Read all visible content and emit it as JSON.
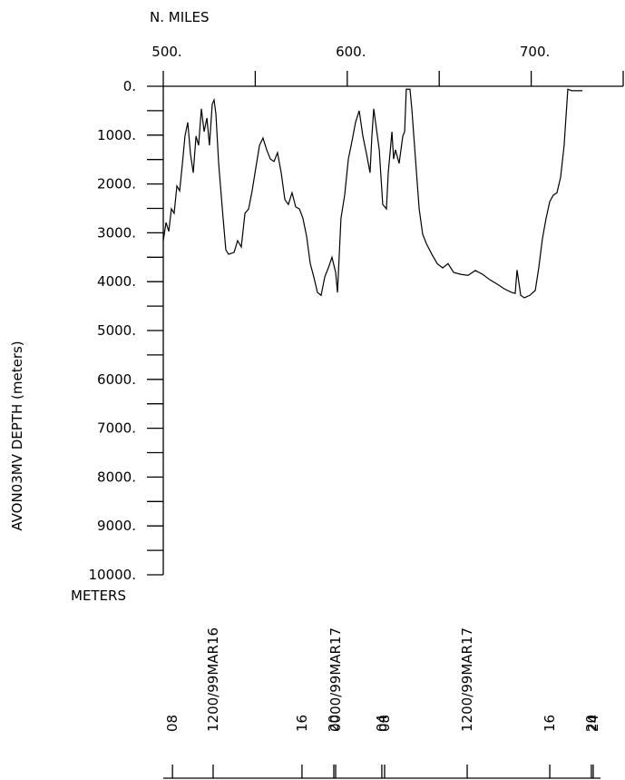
{
  "chart_data": {
    "type": "line",
    "ylabel": "AVON03MV DEPTH (meters)",
    "yunit": "METERS",
    "xlabel": "N. MILES",
    "xlim": [
      500,
      750
    ],
    "ylim": [
      0,
      10000
    ],
    "inverted_y": true,
    "xticks": [
      {
        "value": 500,
        "label": "500."
      },
      {
        "value": 600,
        "label": "600."
      },
      {
        "value": 700,
        "label": "700."
      }
    ],
    "xminor": [
      550,
      650,
      750
    ],
    "yticks": [
      {
        "value": 0,
        "label": "0."
      },
      {
        "value": 1000,
        "label": "1000."
      },
      {
        "value": 2000,
        "label": "2000."
      },
      {
        "value": 3000,
        "label": "3000."
      },
      {
        "value": 4000,
        "label": "4000."
      },
      {
        "value": 5000,
        "label": "5000."
      },
      {
        "value": 6000,
        "label": "6000."
      },
      {
        "value": 7000,
        "label": "7000."
      },
      {
        "value": 8000,
        "label": "8000."
      },
      {
        "value": 9000,
        "label": "9000."
      },
      {
        "value": 10000,
        "label": "10000."
      }
    ],
    "yminor": [
      500,
      1500,
      2500,
      3500,
      4500,
      5500,
      6500,
      7500,
      8500,
      9500
    ],
    "series": [
      {
        "color": "#000000",
        "x": [
          500.0,
          501.5,
          503.0,
          504.4,
          505.9,
          507.4,
          508.9,
          510.4,
          511.8,
          513.3,
          514.8,
          516.3,
          517.8,
          519.2,
          520.7,
          522.2,
          523.7,
          525.1,
          526.6,
          527.6,
          528.6,
          530.1,
          532.1,
          534.0,
          535.5,
          538.5,
          540.4,
          542.4,
          544.4,
          546.4,
          548.3,
          550.3,
          552.3,
          554.2,
          556.2,
          558.2,
          560.2,
          562.1,
          564.1,
          566.1,
          568.0,
          570.0,
          572.0,
          574.0,
          575.9,
          577.9,
          579.9,
          581.8,
          583.8,
          585.8,
          587.8,
          589.7,
          591.7,
          593.7,
          594.7,
          596.6,
          598.6,
          600.6,
          602.6,
          604.5,
          606.5,
          608.5,
          610.5,
          612.4,
          613.4,
          614.4,
          615.4,
          617.4,
          619.3,
          621.3,
          622.3,
          624.3,
          625.2,
          626.2,
          628.2,
          630.2,
          631.2,
          632.1,
          634.1,
          635.1,
          637.1,
          639.1,
          641.0,
          643.0,
          646.0,
          648.9,
          651.9,
          654.8,
          657.8,
          661.7,
          665.7,
          669.6,
          673.6,
          677.5,
          681.5,
          685.5,
          689.4,
          691.3,
          692.3,
          694.3,
          696.3,
          699.2,
          702.2,
          704.1,
          706.1,
          708.1,
          710.1,
          712.0,
          714.0,
          716.0,
          717.9,
          719.9,
          721.9,
          727.8
        ],
        "values": [
          3160,
          2790,
          2970,
          2510,
          2600,
          2040,
          2140,
          1580,
          1020,
          740,
          1390,
          1770,
          1020,
          1210,
          460,
          930,
          650,
          1210,
          370,
          280,
          560,
          1580,
          2510,
          3350,
          3440,
          3400,
          3160,
          3290,
          2600,
          2510,
          2140,
          1670,
          1210,
          1060,
          1300,
          1490,
          1540,
          1360,
          1770,
          2320,
          2420,
          2180,
          2470,
          2510,
          2700,
          3070,
          3630,
          3900,
          4220,
          4280,
          3900,
          3720,
          3500,
          3810,
          4220,
          2700,
          2230,
          1490,
          1120,
          740,
          500,
          1020,
          1390,
          1770,
          1020,
          460,
          740,
          1300,
          2420,
          2510,
          1770,
          930,
          1490,
          1300,
          1580,
          1020,
          930,
          60,
          60,
          460,
          1490,
          2510,
          3030,
          3220,
          3440,
          3630,
          3720,
          3630,
          3810,
          3850,
          3870,
          3770,
          3850,
          3960,
          4050,
          4150,
          4220,
          4240,
          3760,
          4280,
          4330,
          4280,
          4180,
          3720,
          3120,
          2700,
          2360,
          2230,
          2180,
          1860,
          1210,
          60,
          90,
          90
        ]
      }
    ],
    "time_axis": {
      "labels": [
        "08",
        "1200/99MAR16",
        "16",
        "20",
        "0000/99MAR17",
        "04",
        "08",
        "1200/99MAR17",
        "16",
        "20",
        "24"
      ],
      "miles": [
        505.0,
        527.1,
        575.4,
        592.7,
        593.7,
        618.8,
        620.3,
        665.2,
        710.1,
        732.7,
        733.7
      ]
    }
  }
}
